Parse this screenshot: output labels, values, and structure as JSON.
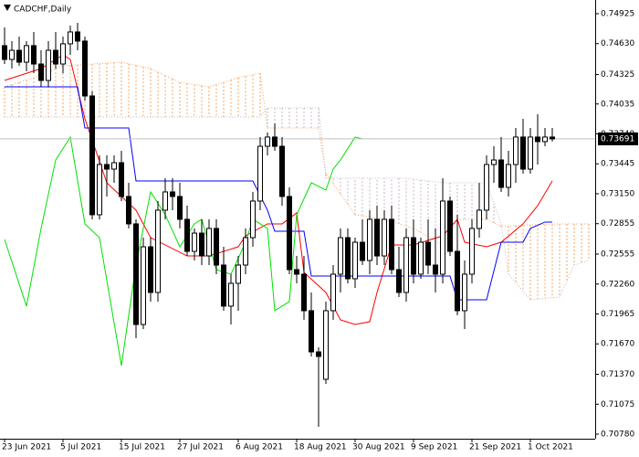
{
  "chart_data": {
    "type": "candlestick",
    "title": "CADCHF,Daily",
    "xlim": [
      -0.625,
      80.875
    ],
    "xticks": [
      {
        "value": 0,
        "label": "23 Jun 2021"
      },
      {
        "value": 8,
        "label": "5 Jul 2021"
      },
      {
        "value": 16,
        "label": "15 Jul 2021"
      },
      {
        "value": 24,
        "label": "27 Jul 2021"
      },
      {
        "value": 32,
        "label": "6 Aug 2021"
      },
      {
        "value": 40,
        "label": "18 Aug 2021"
      },
      {
        "value": 48,
        "label": "30 Aug 2021"
      },
      {
        "value": 56,
        "label": "9 Sep 2021"
      },
      {
        "value": 64,
        "label": "21 Sep 2021"
      },
      {
        "value": 72,
        "label": "1 Oct 2021"
      }
    ],
    "ylim": [
      0.70735,
      0.7506
    ],
    "yticks": [
      0.74925,
      {
        "value": 0.7463,
        "label": "0.74630"
      },
      0.74325,
      0.74035,
      {
        "value": 0.7374,
        "label": "0.73740"
      },
      0.73445,
      {
        "value": 0.7315,
        "label": "0.73150"
      },
      0.72855,
      0.72555,
      {
        "value": 0.7226,
        "label": "0.72260"
      },
      0.71965,
      {
        "value": 0.7167,
        "label": "0.71670"
      },
      {
        "value": 0.7137,
        "label": "0.71370"
      },
      0.71075,
      {
        "value": 0.7078,
        "label": "0.70780"
      }
    ],
    "up_color": "#ffffff",
    "down_color": "#000000",
    "wick_color": "#000000",
    "open": [
      0.7461,
      0.74474,
      0.74564,
      0.74447,
      0.7461,
      0.74429,
      0.74267,
      0.74564,
      0.74429,
      0.74628,
      0.74745,
      0.74655,
      0.74114,
      0.72943,
      0.73438,
      0.73393,
      0.73456,
      0.73123,
      0.72853,
      0.71861,
      0.72627,
      0.72177,
      0.72988,
      0.73168,
      0.73123,
      0.72898,
      0.72582,
      0.72762,
      0.72537,
      0.72808,
      0.72447,
      0.72042,
      0.72267,
      0.72447,
      0.72717,
      0.73078,
      0.73618,
      0.73709,
      0.73618,
      0.73123,
      0.72402,
      0.72357,
      0.71997,
      0.71591,
      0.71321,
      0.71997,
      0.72357,
      0.72717,
      0.72312,
      0.72672,
      0.72492,
      0.72898,
      0.72537,
      0.72898,
      0.72402,
      0.72177,
      0.72717,
      0.72357,
      0.72672,
      0.72447,
      0.72357,
      0.73078,
      0.72582,
      0.71997,
      0.72357,
      0.72808,
      0.72988,
      0.73438,
      0.73483,
      0.73213,
      0.73438,
      0.73709,
      0.73393,
      0.73709,
      0.73664,
      0.73709
    ],
    "high": [
      0.7479,
      0.74655,
      0.747,
      0.74655,
      0.74745,
      0.74564,
      0.74655,
      0.74745,
      0.747,
      0.74808,
      0.74835,
      0.747,
      0.74159,
      0.73528,
      0.73528,
      0.73528,
      0.73573,
      0.73258,
      0.72898,
      0.72717,
      0.72717,
      0.73078,
      0.73303,
      0.73303,
      0.73258,
      0.73033,
      0.72808,
      0.72898,
      0.72898,
      0.72898,
      0.72627,
      0.72357,
      0.72537,
      0.72808,
      0.73168,
      0.73709,
      0.73754,
      0.73844,
      0.73709,
      0.73213,
      0.72537,
      0.72537,
      0.72177,
      0.71636,
      0.72087,
      0.72447,
      0.72808,
      0.72808,
      0.72717,
      0.72898,
      0.72988,
      0.73033,
      0.72988,
      0.73033,
      0.72627,
      0.72808,
      0.72898,
      0.72717,
      0.72898,
      0.72808,
      0.73303,
      0.73123,
      0.72943,
      0.72492,
      0.72898,
      0.73258,
      0.73528,
      0.73618,
      0.73709,
      0.73573,
      0.73799,
      0.73889,
      0.73799,
      0.73934,
      0.73799,
      0.73799
    ],
    "low": [
      0.74429,
      0.74384,
      0.74411,
      0.74357,
      0.74339,
      0.74204,
      0.74204,
      0.74384,
      0.74339,
      0.74519,
      0.74564,
      0.74069,
      0.72898,
      0.72898,
      0.73123,
      0.73258,
      0.73078,
      0.72808,
      0.71726,
      0.71816,
      0.72087,
      0.72087,
      0.72898,
      0.72988,
      0.72808,
      0.72537,
      0.72492,
      0.72447,
      0.72447,
      0.72357,
      0.71997,
      0.71861,
      0.71997,
      0.72357,
      0.72627,
      0.72988,
      0.73528,
      0.73573,
      0.73033,
      0.72357,
      0.72267,
      0.71907,
      0.71546,
      0.70852,
      0.71276,
      0.71907,
      0.72177,
      0.72267,
      0.72222,
      0.72447,
      0.72357,
      0.72447,
      0.72447,
      0.72357,
      0.72132,
      0.72087,
      0.72267,
      0.72312,
      0.72357,
      0.72177,
      0.72267,
      0.72537,
      0.71952,
      0.71816,
      0.72267,
      0.72717,
      0.72898,
      0.73258,
      0.73168,
      0.73123,
      0.73258,
      0.73348,
      0.73348,
      0.73438,
      0.73618,
      0.73664
    ],
    "close": [
      0.74474,
      0.74564,
      0.74447,
      0.7461,
      0.74429,
      0.74267,
      0.74564,
      0.74429,
      0.74628,
      0.74745,
      0.74655,
      0.74114,
      0.72943,
      0.73438,
      0.73393,
      0.73456,
      0.73123,
      0.72853,
      0.71861,
      0.72627,
      0.72177,
      0.72988,
      0.73168,
      0.73123,
      0.72898,
      0.72582,
      0.72762,
      0.72537,
      0.72808,
      0.72447,
      0.72042,
      0.72267,
      0.72447,
      0.72717,
      0.73078,
      0.73618,
      0.73709,
      0.73618,
      0.73123,
      0.72402,
      0.72357,
      0.71997,
      0.71591,
      0.71546,
      0.71997,
      0.72357,
      0.72717,
      0.72312,
      0.72672,
      0.72492,
      0.72898,
      0.72537,
      0.72898,
      0.72402,
      0.72177,
      0.72717,
      0.72357,
      0.72672,
      0.72447,
      0.72357,
      0.73078,
      0.72582,
      0.71997,
      0.72357,
      0.72808,
      0.72988,
      0.73438,
      0.73483,
      0.73213,
      0.73438,
      0.73709,
      0.73393,
      0.73709,
      0.73664,
      0.73709,
      0.73691
    ],
    "cloud": {
      "span_a": {
        "color": "#f4a460",
        "x": [
          0,
          4,
          8,
          12,
          16,
          20,
          24,
          28,
          32,
          35,
          36,
          43,
          44,
          48,
          52,
          56,
          60,
          62,
          66,
          68,
          72,
          76,
          80
        ],
        "values": [
          0.74204,
          0.74294,
          0.74411,
          0.74429,
          0.74447,
          0.74384,
          0.74249,
          0.74204,
          0.74294,
          0.74339,
          0.73799,
          0.73799,
          0.73348,
          0.72943,
          0.72898,
          0.72808,
          0.72645,
          0.72898,
          0.72898,
          0.72826,
          0.72844,
          0.72853,
          0.72853
        ]
      },
      "span_b": {
        "color": "#c8b4c8",
        "x": [
          0,
          35,
          36,
          43,
          44,
          55,
          60,
          66,
          68,
          69,
          72,
          76,
          78,
          80
        ],
        "values": [
          0.73907,
          0.73907,
          0.73997,
          0.73997,
          0.73303,
          0.73303,
          0.73258,
          0.73258,
          0.72853,
          0.72357,
          0.72105,
          0.72132,
          0.72447,
          0.72492
        ]
      }
    },
    "lines": [
      {
        "color": "#ff0000",
        "x": [
          0,
          5,
          8,
          9,
          11,
          14,
          18,
          20,
          25,
          28,
          32,
          33,
          36,
          38,
          40,
          41,
          44,
          46,
          48,
          50,
          51,
          53,
          56,
          60,
          62,
          63,
          66,
          68,
          71,
          73,
          75
        ],
        "values": [
          0.74267,
          0.74384,
          0.74519,
          0.74474,
          0.73889,
          0.73258,
          0.72988,
          0.72717,
          0.72537,
          0.72537,
          0.72627,
          0.72735,
          0.72853,
          0.72853,
          0.72961,
          0.72375,
          0.72177,
          0.71907,
          0.71861,
          0.71888,
          0.72177,
          0.72645,
          0.72645,
          0.72735,
          0.72898,
          0.72672,
          0.72627,
          0.72672,
          0.72853,
          0.73033,
          0.73276
        ]
      },
      {
        "color": "#0000ff",
        "x": [
          0,
          10,
          11,
          17,
          18,
          34,
          36,
          37,
          41,
          42,
          61,
          62,
          66,
          68,
          71,
          72,
          74,
          75
        ],
        "values": [
          0.74204,
          0.74204,
          0.73799,
          0.73799,
          0.73276,
          0.73276,
          0.72988,
          0.7278,
          0.7278,
          0.72339,
          0.72339,
          0.72105,
          0.72105,
          0.72672,
          0.72672,
          0.72808,
          0.72871,
          0.72871
        ]
      },
      {
        "color": "#00e000",
        "x": [
          0,
          3,
          5,
          7,
          9,
          11,
          13,
          16,
          18,
          20,
          22,
          24,
          26,
          27,
          29,
          31,
          33,
          34,
          36,
          37,
          39,
          40,
          42,
          44,
          45,
          46,
          48,
          49
        ],
        "values": [
          0.72699,
          0.72042,
          0.72808,
          0.73483,
          0.73709,
          0.72853,
          0.72717,
          0.71456,
          0.72447,
          0.73168,
          0.72943,
          0.72627,
          0.72853,
          0.72898,
          0.72402,
          0.72357,
          0.72672,
          0.72898,
          0.72808,
          0.71997,
          0.72087,
          0.72943,
          0.73258,
          0.73186,
          0.73393,
          0.73483,
          0.73709,
          0.73691
        ]
      }
    ],
    "last_price": 0.73691,
    "last_price_color": "#c0c0c0"
  }
}
